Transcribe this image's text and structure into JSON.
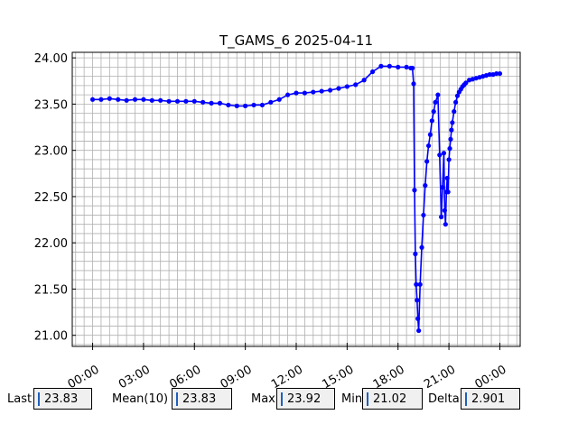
{
  "chart_data": {
    "type": "line",
    "title": "T_GAMS_6 2025-04-11",
    "xlabel": "",
    "ylabel": "",
    "x_tick_labels": [
      "00:00",
      "03:00",
      "06:00",
      "09:00",
      "12:00",
      "15:00",
      "18:00",
      "21:00",
      "00:00"
    ],
    "x_tick_hours": [
      0,
      3,
      6,
      9,
      12,
      15,
      18,
      21,
      24
    ],
    "xlim_hours": [
      -1.2,
      25.2
    ],
    "y_tick_labels": [
      "21.00",
      "21.50",
      "22.00",
      "22.50",
      "23.00",
      "23.50",
      "24.00"
    ],
    "y_ticks": [
      21.0,
      21.5,
      22.0,
      22.5,
      23.0,
      23.5,
      24.0
    ],
    "ylim": [
      20.88,
      24.06
    ],
    "grid": true,
    "series": [
      {
        "color": "#0000ff",
        "x_hours": [
          0.0,
          0.5,
          1.0,
          1.5,
          2.0,
          2.5,
          3.0,
          3.5,
          4.0,
          4.5,
          5.0,
          5.5,
          6.0,
          6.5,
          7.0,
          7.5,
          8.0,
          8.5,
          9.0,
          9.5,
          10.0,
          10.5,
          11.0,
          11.5,
          12.0,
          12.5,
          13.0,
          13.5,
          14.0,
          14.5,
          15.0,
          15.5,
          16.0,
          16.5,
          17.0,
          17.5,
          18.0,
          18.5,
          18.75,
          18.85,
          18.92,
          18.97,
          19.02,
          19.07,
          19.12,
          19.17,
          19.22,
          19.3,
          19.4,
          19.5,
          19.6,
          19.7,
          19.8,
          19.9,
          20.0,
          20.1,
          20.2,
          20.35,
          20.45,
          20.55,
          20.62,
          20.7,
          20.75,
          20.8,
          20.85,
          20.9,
          20.95,
          21.0,
          21.05,
          21.1,
          21.15,
          21.2,
          21.3,
          21.4,
          21.5,
          21.6,
          21.7,
          21.8,
          21.9,
          22.0,
          22.2,
          22.4,
          22.6,
          22.8,
          23.0,
          23.2,
          23.4,
          23.6,
          23.8,
          24.0
        ],
        "y": [
          23.55,
          23.55,
          23.56,
          23.55,
          23.54,
          23.55,
          23.55,
          23.54,
          23.54,
          23.53,
          23.53,
          23.53,
          23.53,
          23.52,
          23.51,
          23.51,
          23.49,
          23.48,
          23.48,
          23.49,
          23.49,
          23.52,
          23.55,
          23.6,
          23.62,
          23.62,
          23.63,
          23.64,
          23.65,
          23.67,
          23.69,
          23.71,
          23.76,
          23.85,
          23.91,
          23.91,
          23.9,
          23.9,
          23.89,
          23.89,
          23.72,
          22.57,
          21.88,
          21.55,
          21.38,
          21.18,
          21.05,
          21.55,
          21.95,
          22.3,
          22.62,
          22.88,
          23.05,
          23.17,
          23.32,
          23.42,
          23.52,
          23.6,
          22.95,
          22.28,
          22.6,
          22.97,
          22.35,
          22.2,
          22.55,
          22.7,
          22.55,
          22.9,
          23.02,
          23.12,
          23.22,
          23.3,
          23.42,
          23.52,
          23.59,
          23.63,
          23.66,
          23.69,
          23.71,
          23.73,
          23.76,
          23.77,
          23.78,
          23.79,
          23.8,
          23.81,
          23.82,
          23.82,
          23.83,
          23.83
        ]
      }
    ]
  },
  "stats": {
    "last_label": "Last",
    "last_value": "23.83",
    "mean_label": "Mean(10)",
    "mean_value": "23.83",
    "max_label": "Max",
    "max_value": "23.92",
    "min_label": "Min",
    "min_value": "21.02",
    "delta_label": "Delta",
    "delta_value": "2.901"
  }
}
